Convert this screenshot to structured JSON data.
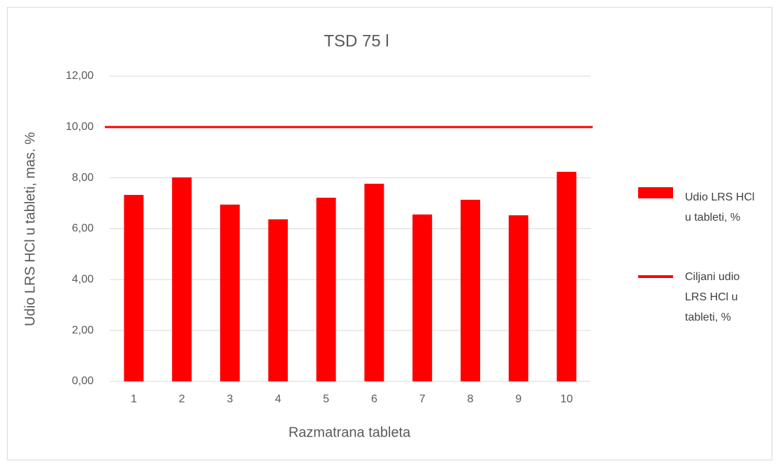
{
  "chart_data": {
    "type": "bar",
    "title": "TSD 75 l",
    "x_label": "Razmatrana tableta",
    "y_label": "Udio LRS HCl u tableti, mas. %",
    "categories": [
      "1",
      "2",
      "3",
      "4",
      "5",
      "6",
      "7",
      "8",
      "9",
      "10"
    ],
    "series": [
      {
        "name": "Udio LRS HCl u tableti, %",
        "type": "bar",
        "color": "#ff0000",
        "values": [
          7.33,
          8.02,
          6.95,
          6.37,
          7.22,
          7.77,
          6.56,
          7.14,
          6.53,
          8.24
        ]
      },
      {
        "name": "Ciljani udio LRS HCl u tableti, %",
        "type": "line",
        "color": "#ff0000",
        "values": [
          10,
          10,
          10,
          10,
          10,
          10,
          10,
          10,
          10,
          10
        ]
      }
    ],
    "ylim": [
      0,
      12
    ],
    "yticks": [
      {
        "value": 0,
        "label": "0,00"
      },
      {
        "value": 2,
        "label": "2,00"
      },
      {
        "value": 4,
        "label": "4,00"
      },
      {
        "value": 6,
        "label": "6,00"
      },
      {
        "value": 8,
        "label": "8,00"
      },
      {
        "value": 10,
        "label": "10,00"
      },
      {
        "value": 12,
        "label": "12,00"
      }
    ],
    "grid": true,
    "legend": "right"
  }
}
